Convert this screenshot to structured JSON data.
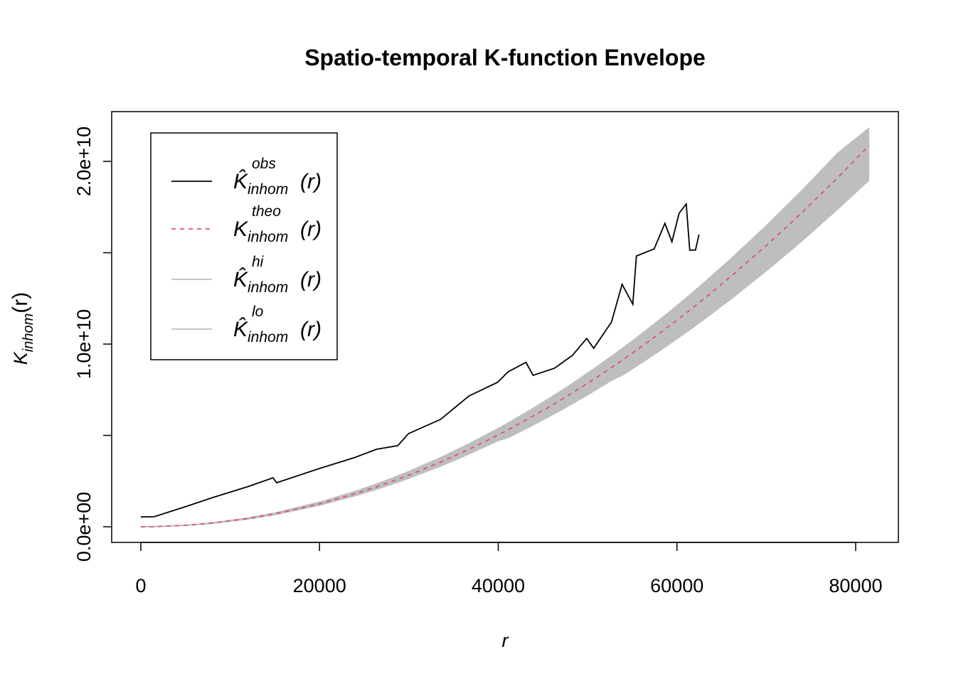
{
  "chart_data": {
    "type": "line",
    "title": "Spatio-temporal K-function Envelope",
    "x_label": "r",
    "y_label": {
      "main": "K",
      "sub": "inhom",
      "arg": "(r)"
    },
    "x": [
      0,
      1500,
      5000,
      8050,
      12000,
      14800,
      15200,
      20000,
      24000,
      26370,
      28760,
      29960,
      33550,
      36730,
      39900,
      41100,
      43100,
      43900,
      46300,
      48300,
      49900,
      50680,
      52670,
      53860,
      55060,
      55460,
      57450,
      58650,
      59440,
      60240,
      61040,
      61430,
      62070,
      62470,
      66000,
      70000,
      74000,
      78000,
      81520
    ],
    "series": [
      {
        "name": "K̂",
        "name_sup": "obs",
        "name_sub": "inhom",
        "name_arg": "(r)",
        "color": "#000000",
        "dash": false,
        "values": [
          540000000.0,
          550000000.0,
          1100000000.0,
          1600000000.0,
          2200000000.0,
          2680000000.0,
          2410000000.0,
          3190000000.0,
          3800000000.0,
          4240000000.0,
          4440000000.0,
          5100000000.0,
          5880000000.0,
          7160000000.0,
          7900000000.0,
          8480000000.0,
          9000000000.0,
          8290000000.0,
          8680000000.0,
          9380000000.0,
          10310000000.0,
          9770000000.0,
          11200000000.0,
          13270000000.0,
          12180000000.0,
          14820000000.0,
          15210000000.0,
          16610000000.0,
          15600000000.0,
          17160000000.0,
          17670000000.0,
          15140000000.0,
          15140000000.0,
          16000000000.0,
          null,
          null,
          null,
          null,
          null
        ]
      },
      {
        "name": "K",
        "name_sup": "theo",
        "name_sub": "inhom",
        "name_arg": "(r)",
        "color": "#DF536B",
        "dash": true,
        "values": [
          0,
          7070000.0,
          78500000.0,
          204000000.0,
          452000000.0,
          688000000.0,
          726000000.0,
          1257000000.0,
          1810000000.0,
          2185000000.0,
          2599000000.0,
          2820000000.0,
          3536000000.0,
          4238000000.0,
          5001000000.0,
          5307000000.0,
          5836000000.0,
          6054000000.0,
          6734000000.0,
          7329000000.0,
          7822000000.0,
          8069000000.0,
          8715000000.0,
          9113000000.0,
          9524000000.0,
          9663000000.0,
          10369000000.0,
          10806000000.0,
          11100000000.0,
          11400000000.0,
          11705000000.0,
          11855000000.0,
          12103000000.0,
          12260000000.0,
          13685000000.0,
          15394000000.0,
          17203000000.0,
          19113000000.0,
          20877000000.0
        ]
      },
      {
        "name": "K̂",
        "name_sup": "hi",
        "name_sub": "inhom",
        "name_arg": "(r)",
        "color": "#BEBEBE",
        "dash": false,
        "values": [
          0,
          7600000.0,
          84000000.0,
          218000000.0,
          484000000.0,
          736000000.0,
          777000000.0,
          1345000000.0,
          1937000000.0,
          2338000000.0,
          2781000000.0,
          3017000000.0,
          3784000000.0,
          4535000000.0,
          5351000000.0,
          5678000000.0,
          6245000000.0,
          6478000000.0,
          7205000000.0,
          7842000000.0,
          8370000000.0,
          8634000000.0,
          9325000000.0,
          9751000000.0,
          10191000000.0,
          10339000000.0,
          11095000000.0,
          11562000000.0,
          11877000000.0,
          12198000000.0,
          12524000000.0,
          12685000000.0,
          12950000000.0,
          13118000000.0,
          14643000000.0,
          16472000000.0,
          18407000000.0,
          20451000000.0,
          21830000000.0
        ]
      },
      {
        "name": "K̂",
        "name_sup": "lo",
        "name_sub": "inhom",
        "name_arg": "(r)",
        "color": "#BEBEBE",
        "dash": false,
        "values": [
          0,
          6600000.0,
          74000000.0,
          192000000.0,
          425000000.0,
          647000000.0,
          682000000.0,
          1182000000.0,
          1701000000.0,
          2054000000.0,
          2443000000.0,
          2651000000.0,
          3324000000.0,
          3984000000.0,
          4701000000.0,
          4882000000.0,
          5369000000.0,
          5570000000.0,
          6195000000.0,
          6743000000.0,
          7196000000.0,
          7423000000.0,
          8018000000.0,
          8293000000.0,
          8667000000.0,
          8793000000.0,
          9436000000.0,
          9833000000.0,
          10101000000.0,
          10374000000.0,
          10652000000.0,
          10788000000.0,
          11014000000.0,
          11157000000.0,
          12453000000.0,
          14009000000.0,
          15655000000.0,
          17393000000.0,
          18990000000.0
        ]
      }
    ],
    "envelope": true,
    "xlim": [
      -3260,
      84780
    ],
    "ylim": [
      -856000000,
      22724000000
    ],
    "xticks": [
      0,
      20000,
      40000,
      60000,
      80000
    ],
    "yticks": [
      {
        "value": 0,
        "label": "0.0e+00"
      },
      {
        "value": 5000000000,
        "label": null
      },
      {
        "value": 10000000000,
        "label": "1.0e+10"
      },
      {
        "value": 15000000000,
        "label": null
      },
      {
        "value": 20000000000,
        "label": "2.0e+10"
      }
    ],
    "legend": "top-left"
  }
}
